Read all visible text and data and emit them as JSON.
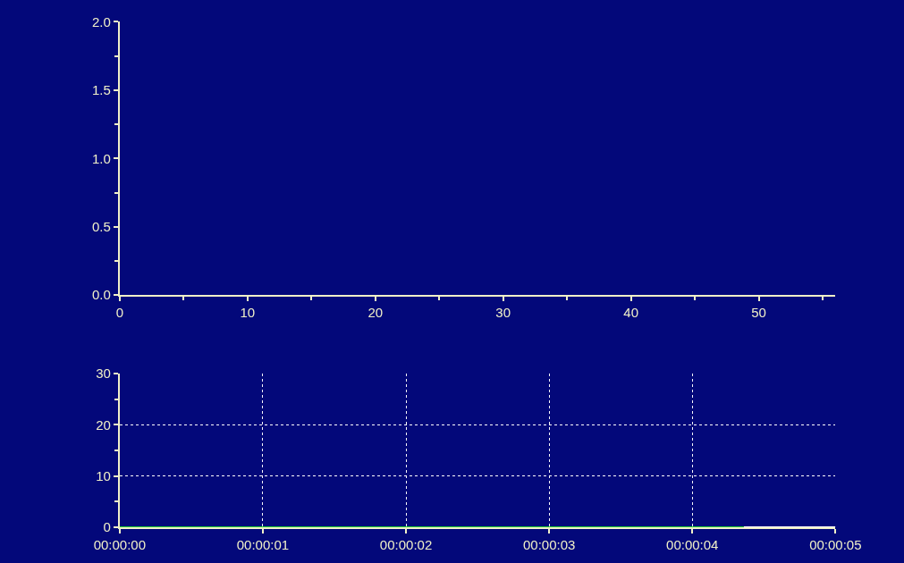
{
  "chart_data": [
    {
      "type": "line",
      "xlim": [
        0,
        56
      ],
      "xticks": [
        0,
        {
          "value": 5,
          "label": null
        },
        10,
        {
          "value": 15,
          "label": null
        },
        20,
        {
          "value": 25,
          "label": null
        },
        30,
        {
          "value": 35,
          "label": null
        },
        40,
        {
          "value": 45,
          "label": null
        },
        50,
        {
          "value": 55,
          "label": null
        }
      ],
      "ylim": [
        0,
        2
      ],
      "yticks": [
        {
          "value": 0,
          "label": "0.0"
        },
        {
          "value": 0.25,
          "label": null
        },
        {
          "value": 0.5,
          "label": "0.5"
        },
        {
          "value": 0.75,
          "label": null
        },
        {
          "value": 1,
          "label": "1.0"
        },
        {
          "value": 1.25,
          "label": null
        },
        {
          "value": 1.5,
          "label": "1.5"
        },
        {
          "value": 1.75,
          "label": null
        },
        {
          "value": 2,
          "label": "2.0"
        }
      ],
      "grid": false
    },
    {
      "type": "line",
      "series": [
        {
          "color": "#22cc33",
          "x": [
            0,
            4.36
          ],
          "values": [
            0,
            0
          ]
        },
        {
          "color": "#ffffff",
          "x": [
            4.36,
            5
          ],
          "values": [
            0,
            0
          ]
        }
      ],
      "xlim": [
        0,
        5
      ],
      "xticks": [
        {
          "value": 0,
          "label": "00:00:00"
        },
        {
          "value": 1,
          "label": "00:00:01"
        },
        {
          "value": 2,
          "label": "00:00:02"
        },
        {
          "value": 3,
          "label": "00:00:03"
        },
        {
          "value": 4,
          "label": "00:00:04"
        },
        {
          "value": 5,
          "label": "00:00:05"
        }
      ],
      "ylim": [
        0,
        30
      ],
      "yticks": [
        0,
        {
          "value": 5,
          "label": null
        },
        10,
        {
          "value": 15,
          "label": null
        },
        20,
        {
          "value": 25,
          "label": null
        },
        30
      ],
      "grid": true
    }
  ]
}
